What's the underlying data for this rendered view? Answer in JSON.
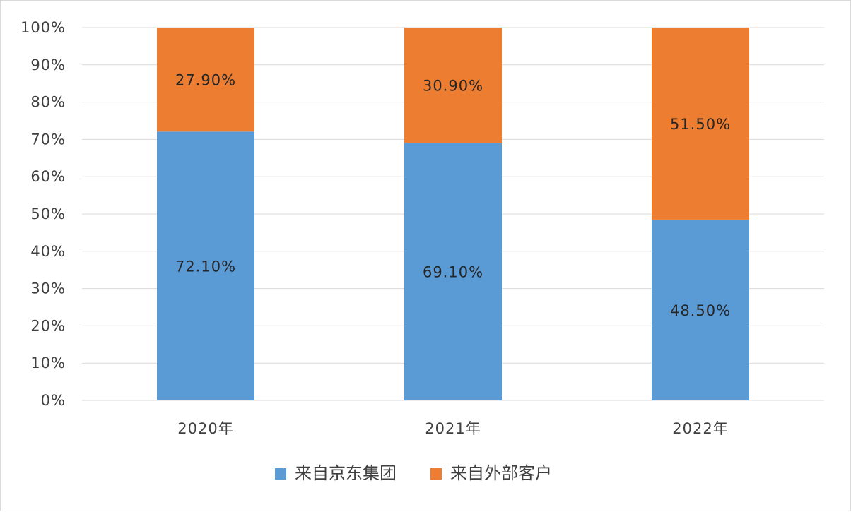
{
  "chart_data": {
    "type": "bar",
    "stacked": true,
    "categories": [
      "2020年",
      "2021年",
      "2022年"
    ],
    "series": [
      {
        "name": "来自京东集团",
        "values": [
          72.1,
          69.1,
          48.5
        ],
        "labels": [
          "72.10%",
          "69.10%",
          "48.50%"
        ],
        "color": "#5b9bd5"
      },
      {
        "name": "来自外部客户",
        "values": [
          27.9,
          30.9,
          51.5
        ],
        "labels": [
          "27.90%",
          "30.90%",
          "51.50%"
        ],
        "color": "#ed7d31"
      }
    ],
    "y_ticks": [
      "0%",
      "10%",
      "20%",
      "30%",
      "40%",
      "50%",
      "60%",
      "70%",
      "80%",
      "90%",
      "100%"
    ],
    "ylim": [
      0,
      100
    ],
    "grid": true,
    "legend_position": "bottom",
    "title": "",
    "xlabel": "",
    "ylabel": ""
  }
}
